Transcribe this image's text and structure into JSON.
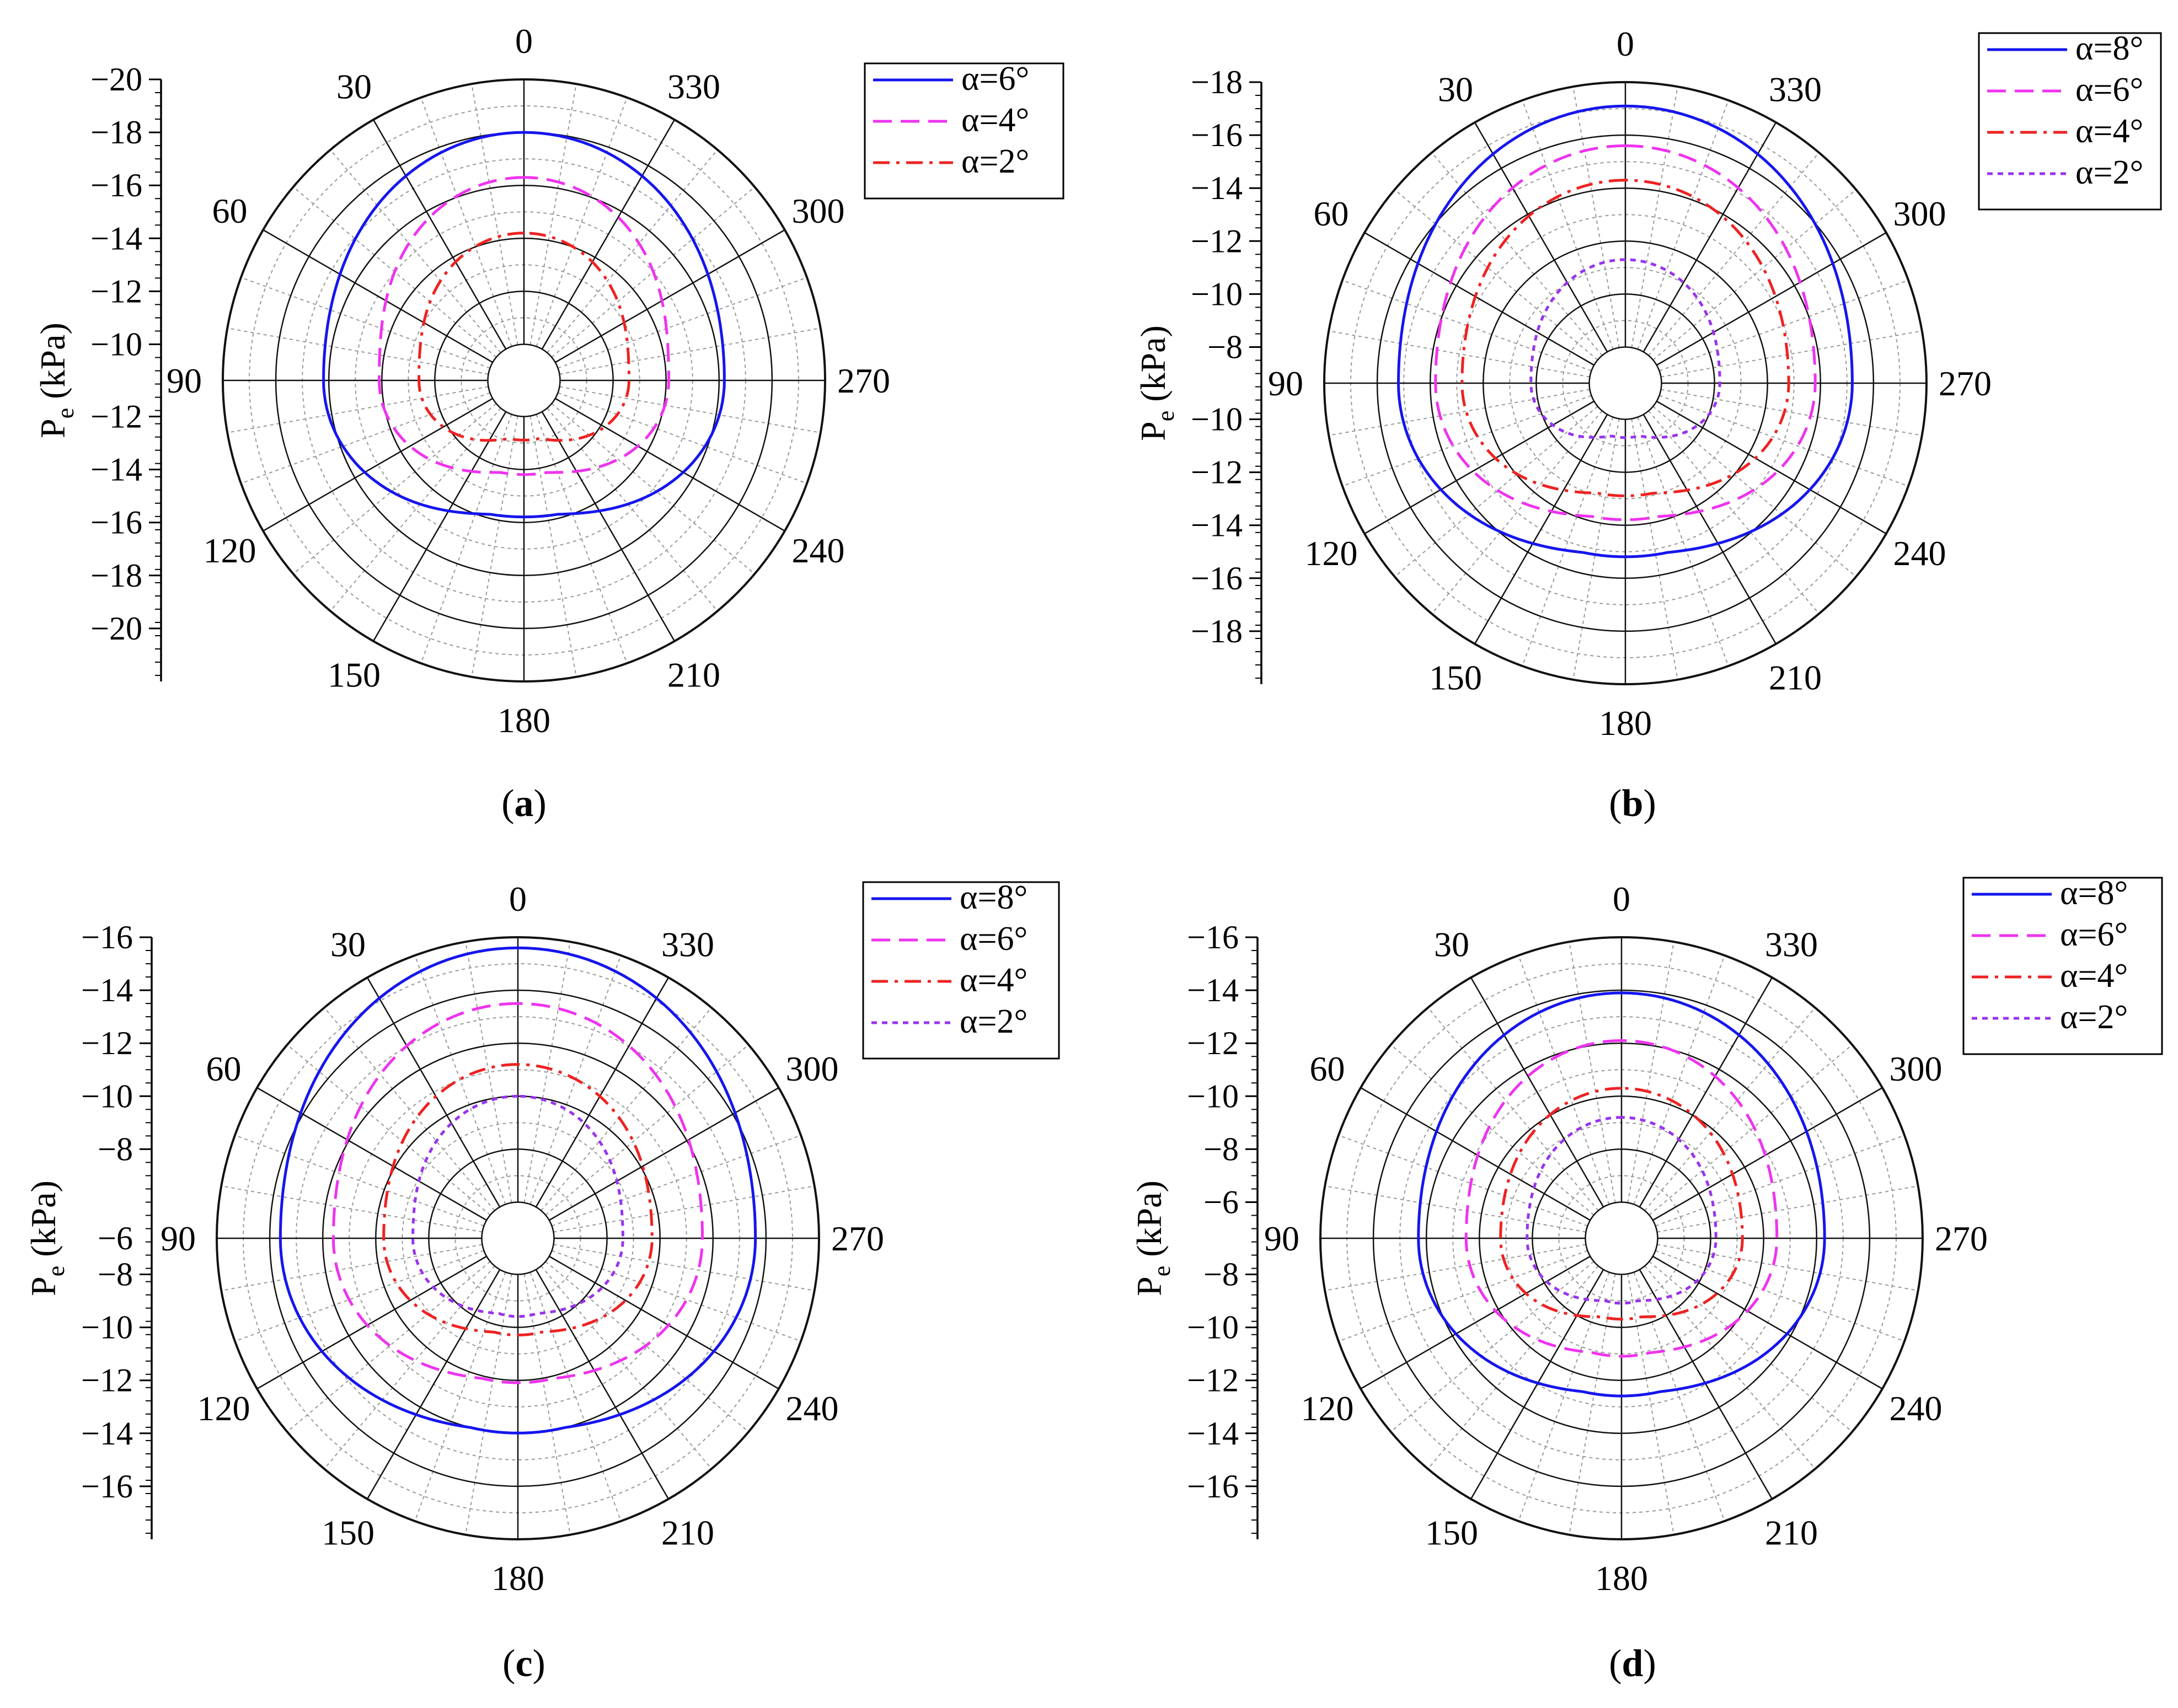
{
  "angle_labels": [
    "0",
    "30",
    "60",
    "90",
    "120",
    "150",
    "180",
    "210",
    "240",
    "270",
    "300",
    "330"
  ],
  "colors": {
    "blue": "#1515ee",
    "magenta": "#ee33ee",
    "red": "#ee2222",
    "purple": "#9933ee",
    "grid_major": "#111111",
    "grid_minor": "#999999"
  },
  "chart_data": [
    {
      "type": "polar-line",
      "caption": "a",
      "ylabel": "P",
      "ylabel_sub": "e",
      "ylabel_unit": " (kPa)",
      "r_ticks_upper": [
        "−20",
        "−18",
        "−16",
        "−14",
        "−12",
        "−10"
      ],
      "r_ticks_lower": [
        "−12",
        "−14",
        "−16",
        "−18",
        "−20"
      ],
      "center_label": "−10",
      "series": [
        {
          "name": "α=6°",
          "color": "#1515ee",
          "dash": "none",
          "r_top": 8.0,
          "r_side": 6.2,
          "r_bottom": 3.7
        },
        {
          "name": "α=4°",
          "color": "#ee33ee",
          "dash": "dashed",
          "r_top": 6.3,
          "r_side": 4.1,
          "r_bottom": 2.1
        },
        {
          "name": "α=2°",
          "color": "#ee2222",
          "dash": "dashdot",
          "r_top": 4.2,
          "r_side": 2.6,
          "r_bottom": 0.8
        }
      ]
    },
    {
      "type": "polar-line",
      "caption": "b",
      "ylabel": "P",
      "ylabel_sub": "e",
      "ylabel_unit": " (kPa)",
      "r_ticks_upper": [
        "−18",
        "−16",
        "−14",
        "−12",
        "−10",
        "−8"
      ],
      "r_ticks_lower": [
        "−10",
        "−12",
        "−14",
        "−16",
        "−18"
      ],
      "center_label": "−8",
      "series": [
        {
          "name": "α=8°",
          "color": "#1515ee",
          "dash": "none",
          "r_top": 9.1,
          "r_side": 7.2,
          "r_bottom": 5.1
        },
        {
          "name": "α=6°",
          "color": "#ee33ee",
          "dash": "dashed",
          "r_top": 7.6,
          "r_side": 5.8,
          "r_bottom": 3.7
        },
        {
          "name": "α=4°",
          "color": "#ee2222",
          "dash": "dashdot",
          "r_top": 6.3,
          "r_side": 4.8,
          "r_bottom": 2.8
        },
        {
          "name": "α=2°",
          "color": "#9933ee",
          "dash": "dotted",
          "r_top": 3.3,
          "r_side": 2.2,
          "r_bottom": 0.6
        }
      ]
    },
    {
      "type": "polar-line",
      "caption": "c",
      "ylabel": "P",
      "ylabel_sub": "e",
      "ylabel_unit": " (kPa)",
      "r_ticks_upper": [
        "−16",
        "−14",
        "−12",
        "−10",
        "−8"
      ],
      "r_ticks_lower": [
        "−8",
        "−10",
        "−12",
        "−14",
        "−16"
      ],
      "center_label": "−6",
      "series": [
        {
          "name": "α=8°",
          "color": "#1515ee",
          "dash": "none",
          "r_top": 9.6,
          "r_side": 7.6,
          "r_bottom": 5.9
        },
        {
          "name": "α=6°",
          "color": "#ee33ee",
          "dash": "dashed",
          "r_top": 7.5,
          "r_side": 5.6,
          "r_bottom": 4.0
        },
        {
          "name": "α=4°",
          "color": "#ee2222",
          "dash": "dashdot",
          "r_top": 5.2,
          "r_side": 3.7,
          "r_bottom": 2.2
        },
        {
          "name": "α=2°",
          "color": "#9933ee",
          "dash": "dotted",
          "r_top": 4.0,
          "r_side": 2.6,
          "r_bottom": 1.5
        }
      ]
    },
    {
      "type": "polar-line",
      "caption": "d",
      "ylabel": "P",
      "ylabel_sub": "e",
      "ylabel_unit": " (kPa)",
      "r_ticks_upper": [
        "−16",
        "−14",
        "−12",
        "−10",
        "−8",
        "−6"
      ],
      "r_ticks_lower": [
        "−8",
        "−10",
        "−12",
        "−14",
        "−16"
      ],
      "center_label": "−6",
      "series": [
        {
          "name": "α=8°",
          "color": "#1515ee",
          "dash": "none",
          "r_top": 7.9,
          "r_side": 6.3,
          "r_bottom": 4.5
        },
        {
          "name": "α=6°",
          "color": "#ee33ee",
          "dash": "dashed",
          "r_top": 6.1,
          "r_side": 4.5,
          "r_bottom": 3.0
        },
        {
          "name": "α=4°",
          "color": "#ee2222",
          "dash": "dashdot",
          "r_top": 4.3,
          "r_side": 3.2,
          "r_bottom": 1.6
        },
        {
          "name": "α=2°",
          "color": "#9933ee",
          "dash": "dotted",
          "r_top": 3.2,
          "r_side": 2.2,
          "r_bottom": 1.0
        }
      ]
    }
  ]
}
